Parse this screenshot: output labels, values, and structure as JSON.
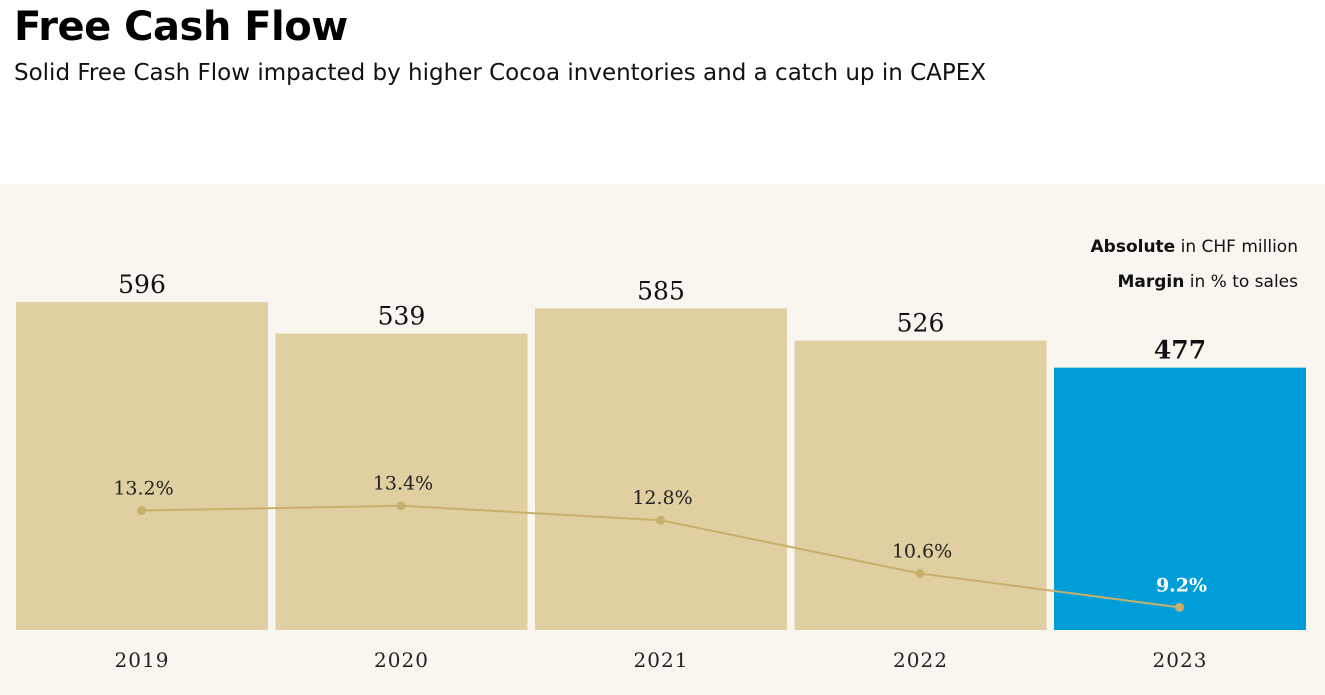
{
  "header": {
    "title": "Free Cash Flow",
    "subtitle": "Solid Free Cash Flow impacted by higher Cocoa inventories and a catch up in CAPEX"
  },
  "legend": {
    "absolute_bold": "Absolute",
    "absolute_rest": " in CHF million",
    "margin_bold": "Margin",
    "margin_rest": " in % to sales"
  },
  "colors": {
    "bar": "#dfcfa1",
    "highlight_bar": "#009ed8",
    "line": "#c9b06a",
    "panel_bg": "#f9f6ef"
  },
  "chart_data": {
    "type": "bar",
    "categories": [
      "2019",
      "2020",
      "2021",
      "2022",
      "2023"
    ],
    "series": [
      {
        "name": "Absolute",
        "values": [
          596,
          539,
          585,
          526,
          477
        ],
        "labels": [
          "596",
          "539",
          "585",
          "526",
          "477"
        ]
      },
      {
        "name": "Margin",
        "type": "line",
        "values": [
          13.2,
          13.4,
          12.8,
          10.6,
          9.2
        ],
        "labels": [
          "13.2%",
          "13.4%",
          "12.8%",
          "10.6%",
          "9.2%"
        ]
      }
    ],
    "highlight_index": 4,
    "xlabel": "",
    "ylabel": "",
    "grid": false
  }
}
